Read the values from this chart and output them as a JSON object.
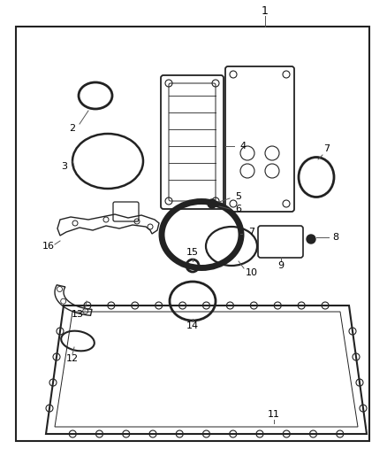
{
  "bg_color": "#ffffff",
  "border_color": "#222222",
  "part_color": "#222222",
  "label_color": "#000000",
  "fig_w": 4.38,
  "fig_h": 5.33,
  "dpi": 100
}
